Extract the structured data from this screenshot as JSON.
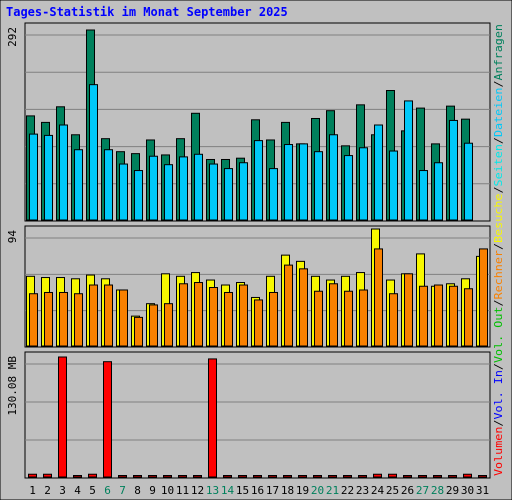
{
  "title": "Tages-Statistik im Monat September 2025",
  "colors": {
    "background": "#c0c0c0",
    "border": "#000000",
    "title": "#0000ff",
    "anfragen": "#00805c",
    "dateien": "#00c8f8",
    "seiten": "#00e8e8",
    "besuche": "#f8f800",
    "rechner": "#f88000",
    "volumen": "#ff0000",
    "vol_in": "#0000ff",
    "vol_out": "#00c000",
    "weekend_label": "#00805c",
    "weekday_label": "#000000"
  },
  "panels": {
    "top": {
      "max_label": "292"
    },
    "middle": {
      "max_label": "94"
    },
    "bottom": {
      "max_label": "130.08 MB"
    }
  },
  "right_labels": {
    "volumen": "Volumen",
    "vol_in": "Vol. In",
    "vol_out": "Vol. Out",
    "rechner": "Rechner",
    "besuche": "Besuche",
    "seiten": "Seiten",
    "dateien": "Dateien",
    "anfragen": "Anfragen",
    "sep": "/"
  },
  "chart_data": {
    "type": "bar",
    "title": "Tages-Statistik im Monat September 2025",
    "categories": [
      "1",
      "2",
      "3",
      "4",
      "5",
      "6",
      "7",
      "8",
      "9",
      "10",
      "11",
      "12",
      "13",
      "14",
      "15",
      "16",
      "17",
      "18",
      "19",
      "20",
      "21",
      "22",
      "23",
      "24",
      "25",
      "26",
      "27",
      "28",
      "29",
      "30",
      "31"
    ],
    "weekend_days": [
      6,
      7,
      13,
      14,
      20,
      21,
      27,
      28
    ],
    "top_panel": {
      "ylim": [
        0,
        292
      ],
      "series": [
        {
          "name": "Anfragen",
          "values": [
            160,
            150,
            174,
            131,
            292,
            125,
            105,
            102,
            123,
            100,
            125,
            164,
            93,
            93,
            95,
            154,
            123,
            150,
            117,
            156,
            168,
            114,
            177,
            131,
            199,
            137,
            172,
            117,
            175,
            155,
            0
          ]
        },
        {
          "name": "Dateien",
          "values": [
            132,
            130,
            146,
            108,
            208,
            108,
            86,
            76,
            98,
            85,
            97,
            101,
            86,
            79,
            88,
            122,
            79,
            116,
            117,
            105,
            131,
            99,
            111,
            146,
            106,
            183,
            76,
            88,
            153,
            118,
            0
          ]
        },
        {
          "name": "Seiten",
          "values": [
            0,
            0,
            0,
            0,
            0,
            0,
            0,
            0,
            0,
            0,
            0,
            0,
            0,
            0,
            0,
            0,
            0,
            0,
            0,
            0,
            0,
            0,
            0,
            0,
            0,
            0,
            0,
            0,
            0,
            0,
            0
          ]
        }
      ]
    },
    "middle_panel": {
      "ylim": [
        0,
        94
      ],
      "series": [
        {
          "name": "Besuche",
          "values": [
            56,
            55,
            55,
            54,
            57,
            54,
            45,
            24,
            34,
            58,
            56,
            59,
            53,
            49,
            51,
            39,
            56,
            73,
            68,
            56,
            53,
            56,
            59,
            94,
            53,
            58,
            74,
            48,
            50,
            54,
            72
          ]
        },
        {
          "name": "Rechner",
          "values": [
            42,
            43,
            43,
            42,
            49,
            49,
            45,
            23,
            33,
            34,
            50,
            51,
            47,
            43,
            49,
            37,
            43,
            65,
            62,
            44,
            50,
            44,
            45,
            78,
            42,
            58,
            48,
            49,
            48,
            46,
            78
          ]
        }
      ]
    },
    "bottom_panel": {
      "ylim": [
        0,
        130.08
      ],
      "unit": "MB",
      "series": [
        {
          "name": "Volumen",
          "values": [
            3,
            3,
            130.08,
            0,
            3,
            125,
            0,
            0,
            0,
            0,
            0,
            0,
            128,
            0,
            0,
            0,
            0,
            0,
            0,
            0,
            0,
            0,
            0,
            3,
            3,
            0,
            0,
            0,
            0,
            3,
            0
          ]
        },
        {
          "name": "Vol. In",
          "values": [
            0,
            0,
            0,
            0,
            0,
            0,
            0,
            0,
            0,
            0,
            0,
            0,
            0,
            0,
            0,
            0,
            0,
            0,
            0,
            0,
            0,
            0,
            0,
            0,
            0,
            0,
            0,
            0,
            0,
            0,
            0
          ]
        },
        {
          "name": "Vol. Out",
          "values": [
            0,
            0,
            0,
            0,
            0,
            0,
            0,
            0,
            0,
            0,
            0,
            0,
            0,
            0,
            0,
            0,
            0,
            0,
            0,
            0,
            0,
            0,
            0,
            0,
            0,
            0,
            0,
            0,
            0,
            0,
            0
          ]
        }
      ]
    }
  }
}
